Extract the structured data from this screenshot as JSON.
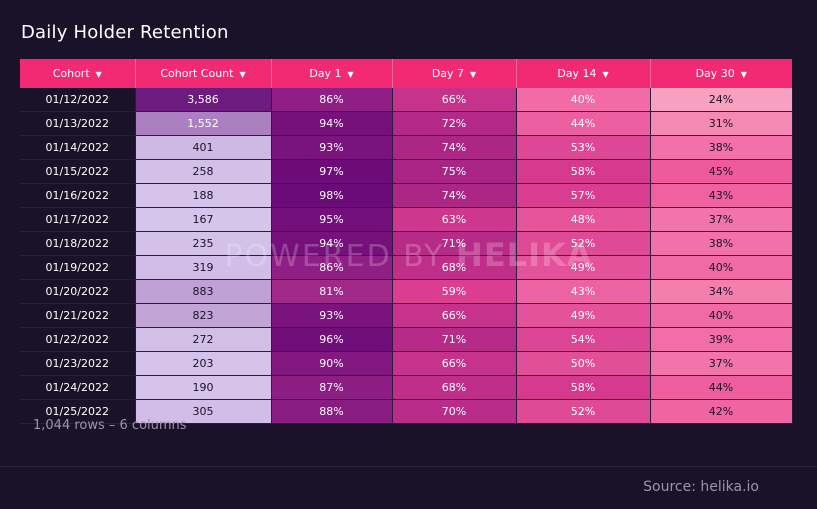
{
  "title": "Daily Holder Retention",
  "caret": "▼",
  "watermark": {
    "prefix": "POWERED BY",
    "brand": "HELIKA"
  },
  "footer": {
    "rows_info": "1,044 rows – 6 columns",
    "source": "Source: helika.io"
  },
  "colors": {
    "header": "#f22a73",
    "background": "#1a1229"
  },
  "chart_data": {
    "type": "table",
    "title": "Daily Holder Retention",
    "columns": [
      "Cohort",
      "Cohort Count",
      "Day 1",
      "Day 7",
      "Day 14",
      "Day 30"
    ],
    "rows": [
      [
        "01/12/2022",
        "3,586",
        "86%",
        "66%",
        "40%",
        "24%"
      ],
      [
        "01/13/2022",
        "1,552",
        "94%",
        "72%",
        "44%",
        "31%"
      ],
      [
        "01/14/2022",
        "401",
        "93%",
        "74%",
        "53%",
        "38%"
      ],
      [
        "01/15/2022",
        "258",
        "97%",
        "75%",
        "58%",
        "45%"
      ],
      [
        "01/16/2022",
        "188",
        "98%",
        "74%",
        "57%",
        "43%"
      ],
      [
        "01/17/2022",
        "167",
        "95%",
        "63%",
        "48%",
        "37%"
      ],
      [
        "01/18/2022",
        "235",
        "94%",
        "71%",
        "52%",
        "38%"
      ],
      [
        "01/19/2022",
        "319",
        "86%",
        "68%",
        "49%",
        "40%"
      ],
      [
        "01/20/2022",
        "883",
        "81%",
        "59%",
        "43%",
        "34%"
      ],
      [
        "01/21/2022",
        "823",
        "93%",
        "66%",
        "49%",
        "40%"
      ],
      [
        "01/22/2022",
        "272",
        "96%",
        "71%",
        "54%",
        "39%"
      ],
      [
        "01/23/2022",
        "203",
        "90%",
        "66%",
        "50%",
        "37%"
      ],
      [
        "01/24/2022",
        "190",
        "87%",
        "68%",
        "58%",
        "44%"
      ],
      [
        "01/25/2022",
        "305",
        "88%",
        "70%",
        "52%",
        "42%"
      ]
    ]
  }
}
